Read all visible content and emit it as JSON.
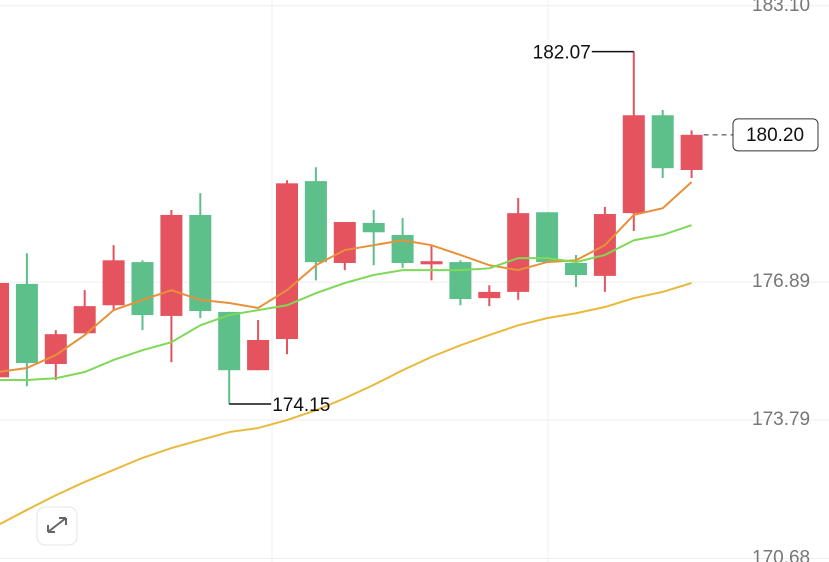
{
  "chart_data": {
    "type": "candlestick",
    "up_color": "#e5535f",
    "down_color": "#5dbf8a",
    "ylim": [
      170.6,
      183.23
    ],
    "yticks": [
      {
        "value": 170.68,
        "label": "170.68"
      },
      173.79,
      176.89,
      {
        "value": 183.1,
        "label": "183.10"
      }
    ],
    "grid": true,
    "ohlc": {
      "open": [
        174.75,
        176.85,
        175.05,
        175.74,
        176.37,
        177.34,
        176.13,
        178.4,
        176.22,
        174.91,
        175.61,
        179.16,
        177.32,
        178.22,
        177.95,
        177.29,
        177.34,
        176.53,
        176.67,
        178.46,
        177.32,
        177.03,
        178.44,
        180.64,
        179.41
      ],
      "high": [
        176.87,
        177.54,
        175.81,
        176.71,
        177.72,
        177.38,
        178.51,
        178.89,
        176.22,
        176.04,
        179.18,
        179.47,
        178.24,
        178.51,
        178.33,
        177.72,
        177.38,
        176.82,
        178.78,
        178.46,
        177.5,
        178.58,
        182.07,
        180.76,
        180.3
      ],
      "low": [
        174.69,
        174.55,
        174.69,
        175.74,
        176.26,
        175.81,
        175.09,
        176.08,
        174.15,
        174.91,
        175.27,
        176.93,
        177.16,
        177.27,
        177.21,
        176.93,
        176.37,
        176.35,
        176.49,
        177.34,
        176.78,
        176.67,
        178.04,
        179.23,
        179.23
      ],
      "close": [
        176.87,
        175.07,
        175.72,
        176.35,
        177.38,
        176.15,
        178.4,
        176.24,
        174.91,
        175.59,
        179.11,
        177.34,
        178.24,
        178.01,
        177.32,
        177.36,
        176.51,
        176.67,
        178.44,
        177.34,
        177.05,
        178.42,
        180.64,
        179.45,
        180.2
      ]
    },
    "ma_lines": [
      {
        "color": "#e8903a",
        "values": [
          174.87,
          174.96,
          175.25,
          175.7,
          176.26,
          176.49,
          176.71,
          176.49,
          176.42,
          176.31,
          176.71,
          177.27,
          177.61,
          177.72,
          177.83,
          177.72,
          177.5,
          177.27,
          177.16,
          177.34,
          177.38,
          177.72,
          178.4,
          178.55,
          179.14
        ]
      },
      {
        "color": "#7ed957",
        "values": [
          174.69,
          174.69,
          174.73,
          174.87,
          175.14,
          175.36,
          175.54,
          175.92,
          176.15,
          176.26,
          176.37,
          176.64,
          176.87,
          177.05,
          177.16,
          177.16,
          177.16,
          177.2,
          177.43,
          177.43,
          177.34,
          177.5,
          177.83,
          177.95,
          178.17
        ]
      },
      {
        "color": "#e8b93a",
        "values": [
          171.43,
          171.77,
          172.1,
          172.4,
          172.67,
          172.94,
          173.16,
          173.34,
          173.52,
          173.61,
          173.79,
          174.01,
          174.28,
          174.58,
          174.91,
          175.21,
          175.47,
          175.7,
          175.92,
          176.08,
          176.19,
          176.33,
          176.53,
          176.67,
          176.87
        ]
      }
    ],
    "max_label": 182.07,
    "min_label": 174.15,
    "last_price": {
      "value": 180.2,
      "label": "180.20"
    }
  }
}
